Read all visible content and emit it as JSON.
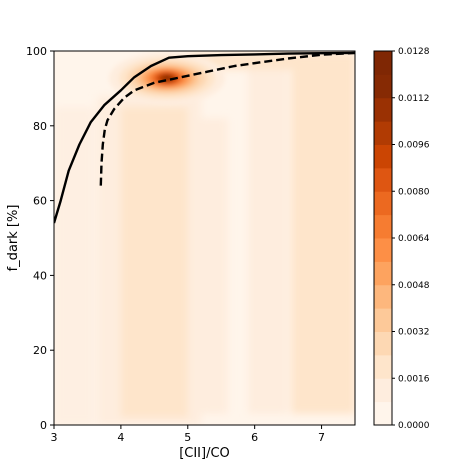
{
  "chart_data": {
    "type": "contour",
    "xlabel": "[CII]/CO",
    "ylabel": "f_dark [%]",
    "xlim": [
      3,
      7.5
    ],
    "ylim": [
      0,
      100
    ],
    "x_ticks": [
      "3",
      "4",
      "5",
      "6",
      "7"
    ],
    "y_ticks": [
      "0",
      "20",
      "40",
      "60",
      "80",
      "100"
    ],
    "grid": false,
    "colormap": "Oranges",
    "colorbar": {
      "range": [
        0,
        0.0128
      ],
      "tick_labels": [
        "0.0000",
        "0.0016",
        "0.0032",
        "0.0048",
        "0.0064",
        "0.0080",
        "0.0096",
        "0.0112",
        "0.0128"
      ],
      "levels": 16,
      "colors": [
        "#fff5eb",
        "#feedde",
        "#fee5cb",
        "#fdd8b3",
        "#fdc999",
        "#fdb77d",
        "#fda35f",
        "#fd8f46",
        "#f67c31",
        "#ec6920",
        "#de5612",
        "#cb4503",
        "#b13b03",
        "#9a3103",
        "#862a04",
        "#7f2704"
      ]
    },
    "density_peak": {
      "x": 4.72,
      "y": 93,
      "value": 0.0128
    },
    "series": [
      {
        "style": "solid",
        "color": "#000000",
        "x": [
          3.0,
          3.1,
          3.22,
          3.38,
          3.55,
          3.75,
          4.0,
          4.2,
          4.45,
          4.72,
          5.0,
          5.5,
          6.0,
          6.5,
          7.0,
          7.5
        ],
        "y": [
          54,
          60,
          68,
          75,
          81,
          85.5,
          89.5,
          93,
          96,
          98.2,
          98.6,
          98.9,
          99.1,
          99.3,
          99.4,
          99.5
        ]
      },
      {
        "style": "dashed",
        "color": "#000000",
        "x": [
          3.7,
          3.71,
          3.73,
          3.76,
          3.8,
          3.9,
          4.05,
          4.2,
          4.5,
          4.9,
          5.3,
          5.7,
          6.1,
          6.5,
          7.0,
          7.5
        ],
        "y": [
          64,
          70,
          75,
          79,
          81.5,
          84.5,
          87.5,
          89.5,
          91.5,
          93,
          94.5,
          96,
          97,
          98,
          99,
          99.5
        ]
      }
    ]
  }
}
